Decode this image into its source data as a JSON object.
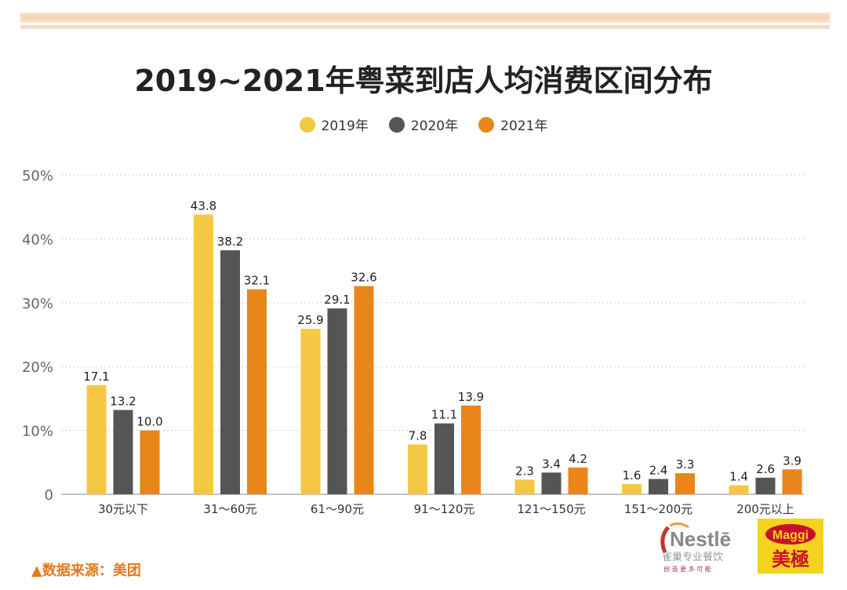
{
  "chart_data": {
    "type": "bar",
    "title": "2019~2021年粤菜到店人均消费区间分布",
    "categories": [
      "30元以下",
      "31～60元",
      "61～90元",
      "91～120元",
      "121～150元",
      "151～200元",
      "200元以上"
    ],
    "series": [
      {
        "name": "2019年",
        "color": "#f4c842",
        "values": [
          17.1,
          43.8,
          25.9,
          7.8,
          2.3,
          1.6,
          1.4
        ]
      },
      {
        "name": "2020年",
        "color": "#555555",
        "values": [
          13.2,
          38.2,
          29.1,
          11.1,
          3.4,
          2.4,
          2.6
        ]
      },
      {
        "name": "2021年",
        "color": "#e8861a",
        "values": [
          10.0,
          32.1,
          32.6,
          13.9,
          4.2,
          3.3,
          3.9
        ]
      }
    ],
    "yticks": [
      "0",
      "10%",
      "20%",
      "30%",
      "40%",
      "50%"
    ],
    "ylim": [
      0,
      50
    ],
    "grid": true,
    "legend": "top-center"
  },
  "source": "▲数据来源：美团",
  "logos": {
    "nestle": "Nestlé 雀巢专业餐饮 创造更多可能",
    "maggi": "Maggi 美極"
  }
}
